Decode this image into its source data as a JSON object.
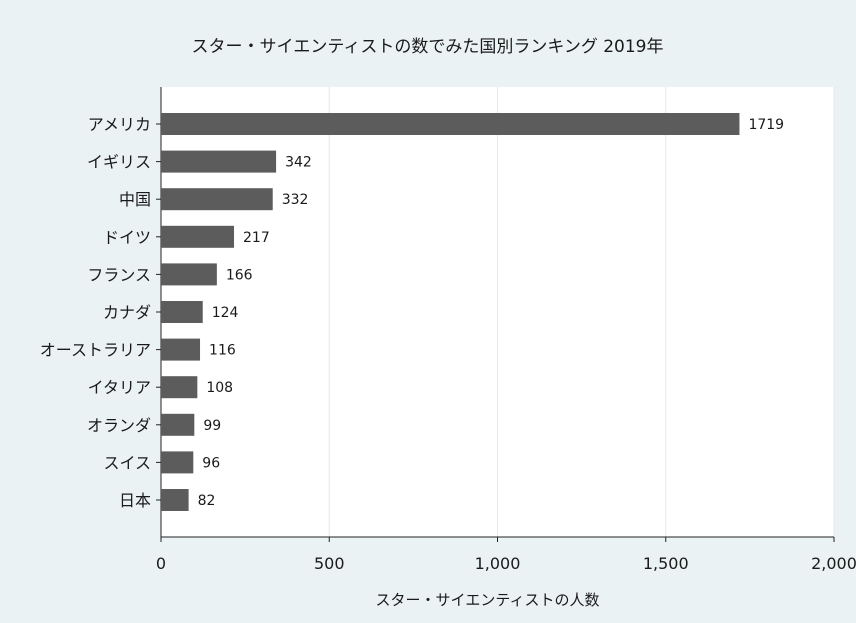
{
  "chart_data": {
    "type": "bar",
    "orientation": "horizontal",
    "title": "スター・サイエンティストの数でみた国別ランキング 2019年",
    "xlabel": "スター・サイエンティストの人数",
    "ylabel": "",
    "categories": [
      "アメリカ",
      "イギリス",
      "中国",
      "ドイツ",
      "フランス",
      "カナダ",
      "オーストラリア",
      "イタリア",
      "オランダ",
      "スイス",
      "日本"
    ],
    "values": [
      1719,
      342,
      332,
      217,
      166,
      124,
      116,
      108,
      99,
      96,
      82
    ],
    "value_labels": [
      "1719",
      "342",
      "332",
      "217",
      "166",
      "124",
      "116",
      "108",
      "99",
      "96",
      "82"
    ],
    "xlim": [
      0,
      2000
    ],
    "xticks": [
      0,
      500,
      1000,
      1500,
      2000
    ],
    "xtick_labels": [
      "0",
      "500",
      "1,000",
      "1,500",
      "2,000"
    ],
    "grid": true,
    "legend": "none",
    "colors": {
      "background": "#eaf2f3",
      "plot_background": "#ffffff",
      "bar": "#5c5c5c",
      "grid": "#e1e8ea"
    }
  }
}
